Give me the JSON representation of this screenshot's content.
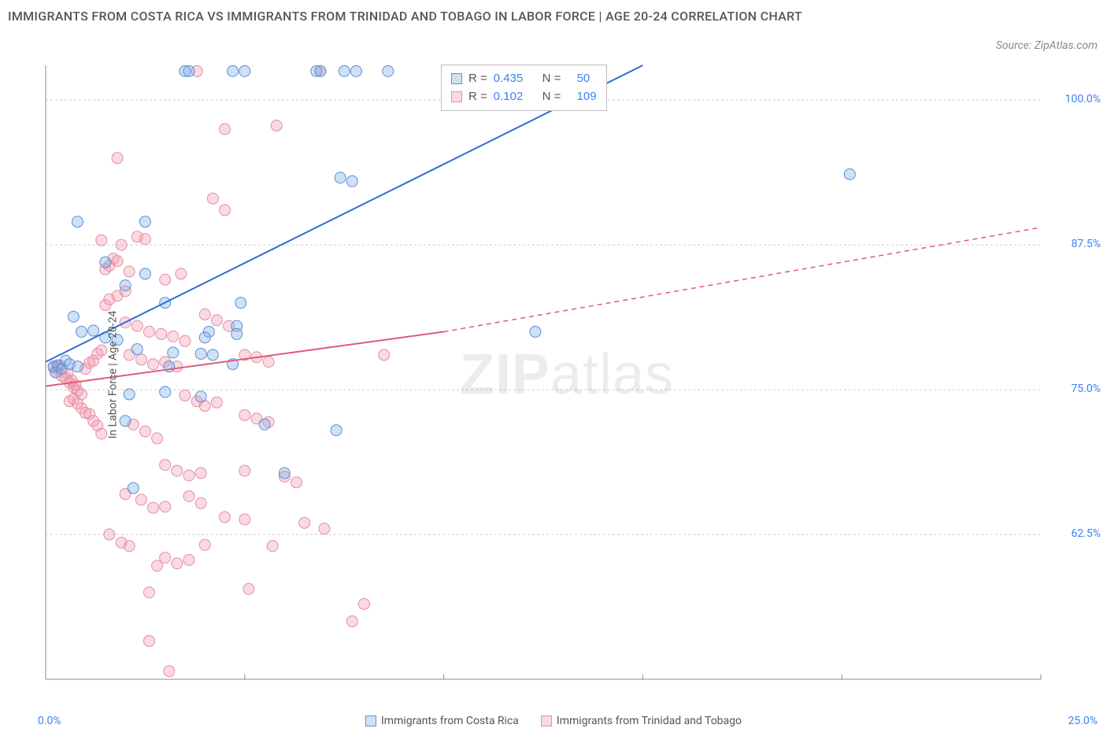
{
  "title": "IMMIGRANTS FROM COSTA RICA VS IMMIGRANTS FROM TRINIDAD AND TOBAGO IN LABOR FORCE | AGE 20-24 CORRELATION CHART",
  "source": "Source: ZipAtlas.com",
  "watermark_bold": "ZIP",
  "watermark_light": "atlas",
  "y_label": "In Labor Force | Age 20-24",
  "chart": {
    "type": "scatter",
    "xlim": [
      0,
      25
    ],
    "ylim": [
      50,
      103
    ],
    "x_tick_start": "0.0%",
    "x_tick_end": "25.0%",
    "x_gridlines": [
      5,
      10,
      15,
      20,
      25
    ],
    "y_ticks": [
      {
        "v": 62.5,
        "label": "62.5%"
      },
      {
        "v": 75.0,
        "label": "75.0%"
      },
      {
        "v": 87.5,
        "label": "87.5%"
      },
      {
        "v": 100.0,
        "label": "100.0%"
      }
    ],
    "background_color": "#ffffff",
    "grid_color": "#cccccc",
    "axis_color": "#888888",
    "series": [
      {
        "name": "Immigrants from Costa Rica",
        "color_fill": "rgba(120,170,230,0.35)",
        "color_stroke": "#5b8fd6",
        "trend_color": "#2f6fd0",
        "trend_style": "solid",
        "trend": {
          "x1": 0,
          "y1": 77.4,
          "x2": 15,
          "y2": 103
        },
        "trend_dash": {
          "x1": 15,
          "y1": 103,
          "x2": 15,
          "y2": 103
        },
        "R": "0.435",
        "N": "50",
        "points": [
          [
            0.2,
            77
          ],
          [
            0.3,
            77.1
          ],
          [
            0.25,
            76.5
          ],
          [
            0.4,
            76.8
          ],
          [
            0.5,
            77.5
          ],
          [
            0.6,
            77.2
          ],
          [
            0.8,
            77
          ],
          [
            1.5,
            86
          ],
          [
            2.2,
            66.5
          ],
          [
            4.8,
            80.5
          ],
          [
            2.5,
            89.5
          ],
          [
            2.5,
            85
          ],
          [
            4.1,
            80
          ],
          [
            3.5,
            102.5
          ],
          [
            3.6,
            102.5
          ],
          [
            4.7,
            102.5
          ],
          [
            5,
            102.5
          ],
          [
            6.8,
            102.5
          ],
          [
            6.9,
            102.5
          ],
          [
            7.5,
            102.5
          ],
          [
            7.8,
            102.5
          ],
          [
            8.6,
            102.5
          ],
          [
            7.4,
            93.3
          ],
          [
            7.7,
            93.0
          ],
          [
            0.8,
            89.5
          ],
          [
            2.0,
            84
          ],
          [
            3.0,
            82.5
          ],
          [
            4.9,
            82.5
          ],
          [
            4.0,
            79.5
          ],
          [
            4.8,
            79.8
          ],
          [
            3.2,
            78.2
          ],
          [
            2.3,
            78.5
          ],
          [
            3.9,
            78.1
          ],
          [
            4.2,
            78
          ],
          [
            2.1,
            74.6
          ],
          [
            3.0,
            74.8
          ],
          [
            3.9,
            74.4
          ],
          [
            4.7,
            77.2
          ],
          [
            3.1,
            77.0
          ],
          [
            2.0,
            72.3
          ],
          [
            5.5,
            72.0
          ],
          [
            7.3,
            71.5
          ],
          [
            6.0,
            67.8
          ],
          [
            12.3,
            80.0
          ],
          [
            20.2,
            93.6
          ],
          [
            1.5,
            79.5
          ],
          [
            1.8,
            79.3
          ],
          [
            1.2,
            80.1
          ],
          [
            0.9,
            80.0
          ],
          [
            0.7,
            81.3
          ]
        ]
      },
      {
        "name": "Immigrants from Trinidad and Tobago",
        "color_fill": "rgba(240,150,170,0.35)",
        "color_stroke": "#e38fa6",
        "trend_color": "#e05a7d",
        "trend_style": "dashed",
        "trend": {
          "x1": 0,
          "y1": 75.3,
          "x2": 10,
          "y2": 80.0
        },
        "trend_dash": {
          "x1": 10,
          "y1": 80.0,
          "x2": 25,
          "y2": 89.0
        },
        "R": "0.102",
        "N": "109",
        "points": [
          [
            0.2,
            76.9
          ],
          [
            0.25,
            76.5
          ],
          [
            0.3,
            77.0
          ],
          [
            0.35,
            77.1
          ],
          [
            0.4,
            76.2
          ],
          [
            0.5,
            76.0
          ],
          [
            0.55,
            76.4
          ],
          [
            0.6,
            75.6
          ],
          [
            0.65,
            75.8
          ],
          [
            0.7,
            75.2
          ],
          [
            0.75,
            75.4
          ],
          [
            0.8,
            74.9
          ],
          [
            0.9,
            74.6
          ],
          [
            1.0,
            76.8
          ],
          [
            1.1,
            77.3
          ],
          [
            1.2,
            77.5
          ],
          [
            1.3,
            78.1
          ],
          [
            1.4,
            78.4
          ],
          [
            0.6,
            74.0
          ],
          [
            0.7,
            74.2
          ],
          [
            0.8,
            73.8
          ],
          [
            0.9,
            73.4
          ],
          [
            1.0,
            73.0
          ],
          [
            1.1,
            72.9
          ],
          [
            1.2,
            72.3
          ],
          [
            1.3,
            71.9
          ],
          [
            1.4,
            71.2
          ],
          [
            1.5,
            85.4
          ],
          [
            1.6,
            85.7
          ],
          [
            1.7,
            86.3
          ],
          [
            1.8,
            86.1
          ],
          [
            1.5,
            82.3
          ],
          [
            1.6,
            82.8
          ],
          [
            1.8,
            83.1
          ],
          [
            2.0,
            83.5
          ],
          [
            1.9,
            87.5
          ],
          [
            2.3,
            88.2
          ],
          [
            2.5,
            88.0
          ],
          [
            2.0,
            80.8
          ],
          [
            2.3,
            80.5
          ],
          [
            2.6,
            80.0
          ],
          [
            2.9,
            79.8
          ],
          [
            3.2,
            79.6
          ],
          [
            3.5,
            79.2
          ],
          [
            2.1,
            78.0
          ],
          [
            2.4,
            77.6
          ],
          [
            2.7,
            77.2
          ],
          [
            3.0,
            77.4
          ],
          [
            3.3,
            77.0
          ],
          [
            3.5,
            74.5
          ],
          [
            3.8,
            74.0
          ],
          [
            4.0,
            73.6
          ],
          [
            4.3,
            73.9
          ],
          [
            2.2,
            72.0
          ],
          [
            2.5,
            71.4
          ],
          [
            2.8,
            70.8
          ],
          [
            3.0,
            68.5
          ],
          [
            3.3,
            68.0
          ],
          [
            3.6,
            67.6
          ],
          [
            3.9,
            67.8
          ],
          [
            2.0,
            66.0
          ],
          [
            2.4,
            65.5
          ],
          [
            2.7,
            64.8
          ],
          [
            3.0,
            64.9
          ],
          [
            3.6,
            65.8
          ],
          [
            3.9,
            65.2
          ],
          [
            1.6,
            62.5
          ],
          [
            1.9,
            61.8
          ],
          [
            2.1,
            61.5
          ],
          [
            4.0,
            61.6
          ],
          [
            2.8,
            59.8
          ],
          [
            3.0,
            60.5
          ],
          [
            3.3,
            60.0
          ],
          [
            3.6,
            60.3
          ],
          [
            5.7,
            61.5
          ],
          [
            2.6,
            57.5
          ],
          [
            5.1,
            57.8
          ],
          [
            2.6,
            53.3
          ],
          [
            7.7,
            55.0
          ],
          [
            3.1,
            50.7
          ],
          [
            8.0,
            56.5
          ],
          [
            3.8,
            102.5
          ],
          [
            6.9,
            102.5
          ],
          [
            1.8,
            95.0
          ],
          [
            4.5,
            97.5
          ],
          [
            5.8,
            97.8
          ],
          [
            4.2,
            91.5
          ],
          [
            4.5,
            90.5
          ],
          [
            5.0,
            78.0
          ],
          [
            5.3,
            77.8
          ],
          [
            5.6,
            77.4
          ],
          [
            5.0,
            72.8
          ],
          [
            5.3,
            72.5
          ],
          [
            5.6,
            72.2
          ],
          [
            5.0,
            68.0
          ],
          [
            6.0,
            67.5
          ],
          [
            6.3,
            67.0
          ],
          [
            4.0,
            81.5
          ],
          [
            4.3,
            81.0
          ],
          [
            4.6,
            80.5
          ],
          [
            4.5,
            64.0
          ],
          [
            5.0,
            63.8
          ],
          [
            6.5,
            63.5
          ],
          [
            7.0,
            63.0
          ],
          [
            8.5,
            78.0
          ],
          [
            1.4,
            87.9
          ],
          [
            2.1,
            85.2
          ],
          [
            3.0,
            84.5
          ],
          [
            3.4,
            85.0
          ]
        ]
      }
    ]
  },
  "rn_labels": {
    "R": "R =",
    "N": "N ="
  }
}
